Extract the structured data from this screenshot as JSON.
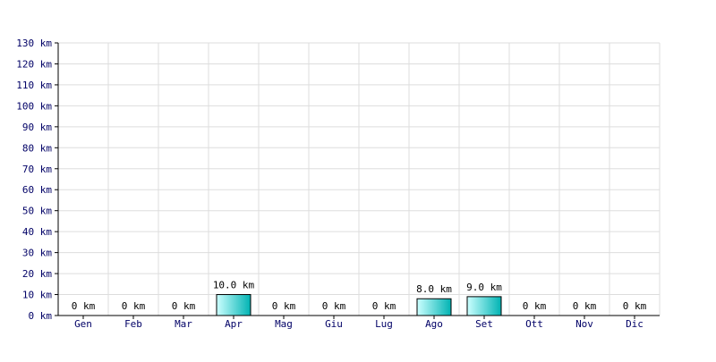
{
  "chart_data": {
    "type": "bar",
    "categories": [
      "Gen",
      "Feb",
      "Mar",
      "Apr",
      "Mag",
      "Giu",
      "Lug",
      "Ago",
      "Set",
      "Ott",
      "Nov",
      "Dic"
    ],
    "values": [
      0,
      0,
      0,
      10.0,
      0,
      0,
      0,
      8.0,
      9.0,
      0,
      0,
      0
    ],
    "data_labels": [
      "0 km",
      "0 km",
      "0 km",
      "10.0 km",
      "0 km",
      "0 km",
      "0 km",
      "8.0 km",
      "9.0 km",
      "0 km",
      "0 km",
      "0 km"
    ],
    "y_ticks": [
      0,
      10,
      20,
      30,
      40,
      50,
      60,
      70,
      80,
      90,
      100,
      110,
      120,
      130
    ],
    "y_tick_labels": [
      "0 km",
      "10 km",
      "20 km",
      "30 km",
      "40 km",
      "50 km",
      "60 km",
      "70 km",
      "80 km",
      "90 km",
      "100 km",
      "110 km",
      "120 km",
      "130 km"
    ],
    "ylim": [
      0,
      130
    ],
    "grid": true,
    "colors": {
      "bar_fill_light": "#ccffff",
      "bar_fill_dark": "#00b3b3",
      "bar_stroke": "#000000",
      "grid": "#dddddd",
      "axis": "#000000",
      "tick_text": "#000066"
    }
  }
}
